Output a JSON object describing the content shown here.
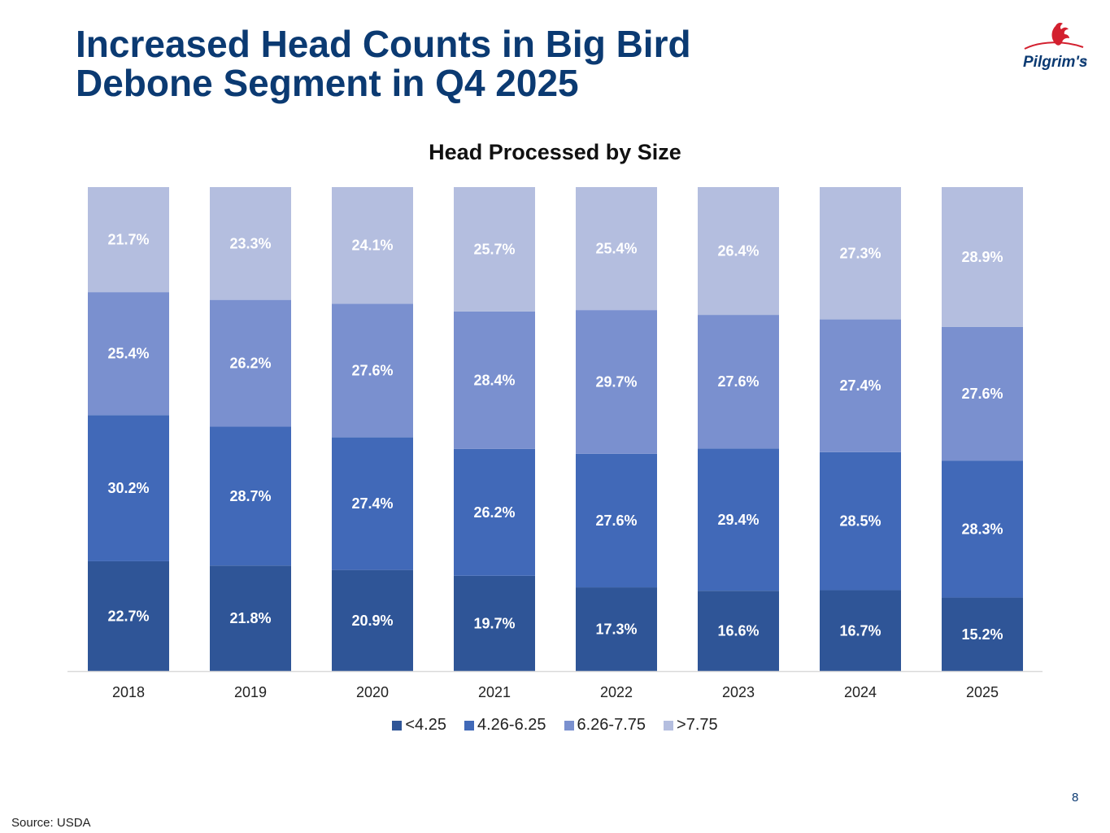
{
  "title_lines": [
    "Increased Head Counts in Big Bird",
    "Debone Segment in Q4 2025"
  ],
  "logo": {
    "text": "Pilgrim's",
    "reg_mark": "®",
    "colors": {
      "rooster": "#d3202f",
      "text": "#0b3a72"
    }
  },
  "colors": {
    "title": "#0b3a72",
    "series": [
      "#2f5597",
      "#4169b8",
      "#7a90cf",
      "#b4bedf"
    ]
  },
  "chart_data": {
    "type": "bar",
    "stacked": true,
    "title": "Head Processed by Size",
    "categories": [
      "2018",
      "2019",
      "2020",
      "2021",
      "2022",
      "2023",
      "2024",
      "2025"
    ],
    "series": [
      {
        "name": "<4.25",
        "values": [
          22.7,
          21.8,
          20.9,
          19.7,
          17.3,
          16.6,
          16.7,
          15.2
        ],
        "labels": [
          "22.7%",
          "21.8%",
          "20.9%",
          "19.7%",
          "17.3%",
          "16.6%",
          "16.7%",
          "15.2%"
        ]
      },
      {
        "name": "4.26-6.25",
        "values": [
          30.2,
          28.7,
          27.4,
          26.2,
          27.6,
          29.4,
          28.5,
          28.3
        ],
        "labels": [
          "30.2%",
          "28.7%",
          "27.4%",
          "26.2%",
          "27.6%",
          "29.4%",
          "28.5%",
          "28.3%"
        ]
      },
      {
        "name": "6.26-7.75",
        "values": [
          25.4,
          26.2,
          27.6,
          28.4,
          29.7,
          27.6,
          27.4,
          27.6
        ],
        "labels": [
          "25.4%",
          "26.2%",
          "27.6%",
          "28.4%",
          "29.7%",
          "27.6%",
          "27.4%",
          "27.6%"
        ]
      },
      {
        "name": ">7.75",
        "values": [
          21.7,
          23.3,
          24.1,
          25.7,
          25.4,
          26.4,
          27.3,
          28.9
        ],
        "labels": [
          "21.7%",
          "23.3%",
          "24.1%",
          "25.7%",
          "25.4%",
          "26.4%",
          "27.3%",
          "28.9%"
        ]
      }
    ],
    "xlabel": "",
    "ylabel": "",
    "ylim": [
      0,
      100
    ],
    "legend_position": "bottom",
    "grid": false
  },
  "page_number": "8",
  "source": "Source: USDA"
}
